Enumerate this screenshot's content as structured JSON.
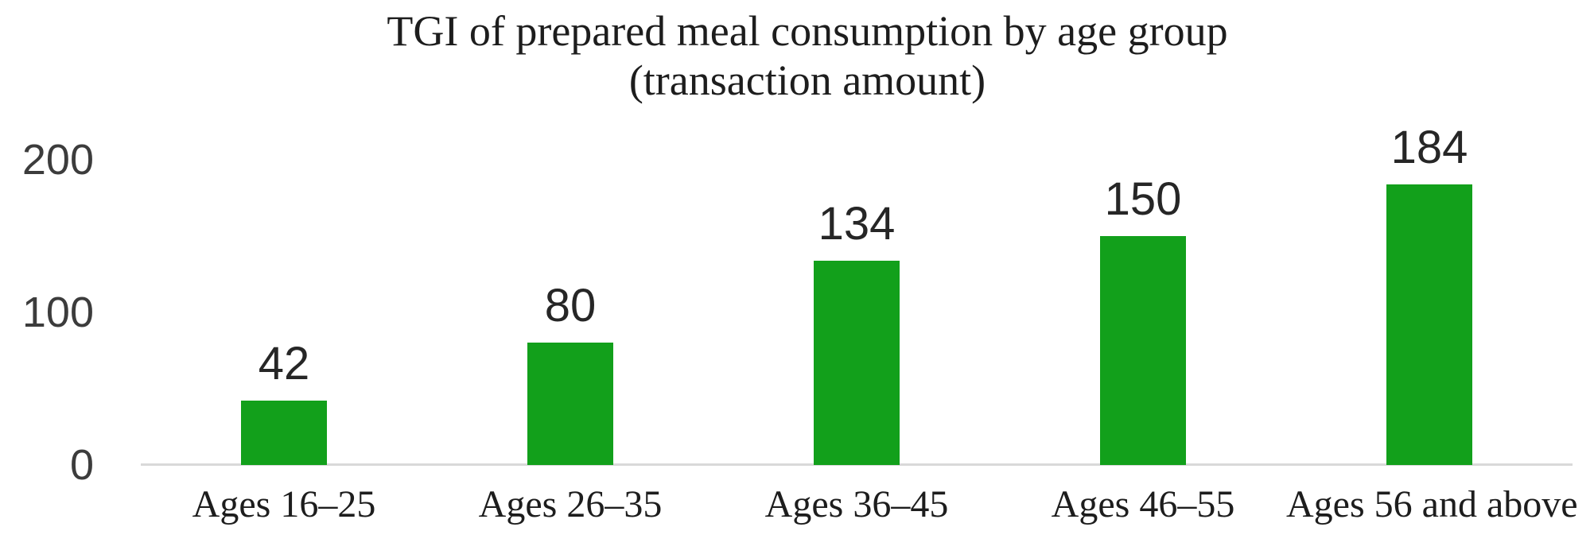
{
  "chart_data": {
    "type": "bar",
    "title_line1": "TGI of prepared meal consumption by age group",
    "title_line2": "(transaction amount)",
    "categories": [
      "Ages 16–25",
      "Ages 26–35",
      "Ages 36–45",
      "Ages 46–55",
      "Ages 56 and above"
    ],
    "values": [
      42,
      80,
      134,
      150,
      184
    ],
    "y_ticks": [
      0,
      100,
      200
    ],
    "ylim": [
      0,
      200
    ],
    "xlabel": "",
    "ylabel": "",
    "grid": "off",
    "legend": "none",
    "bar_color": "#12a01b",
    "axis_line_color": "#d9d9d9",
    "title_color": "#1d1d1d",
    "tick_color": "#3c3c3c",
    "value_label_color": "#262626"
  }
}
